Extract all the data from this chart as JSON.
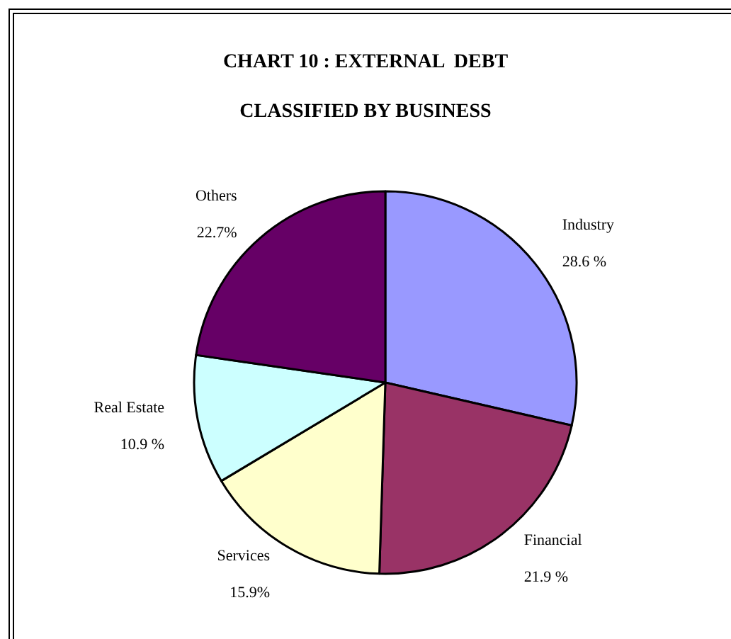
{
  "chart_data": {
    "type": "pie",
    "title": "CHART 10 : EXTERNAL  DEBT",
    "subtitle": "CLASSIFIED BY BUSINESS",
    "categories": [
      "Industry",
      "Financial",
      "Services",
      "Real Estate",
      "Others"
    ],
    "values": [
      28.6,
      21.9,
      15.9,
      10.9,
      22.7
    ],
    "colors": [
      "#9999ff",
      "#993366",
      "#ffffcc",
      "#ccffff",
      "#660066"
    ],
    "value_labels": [
      "28.6 %",
      "21.9 %",
      "15.9%",
      "10.9 %",
      "22.7%"
    ],
    "legend": false
  }
}
